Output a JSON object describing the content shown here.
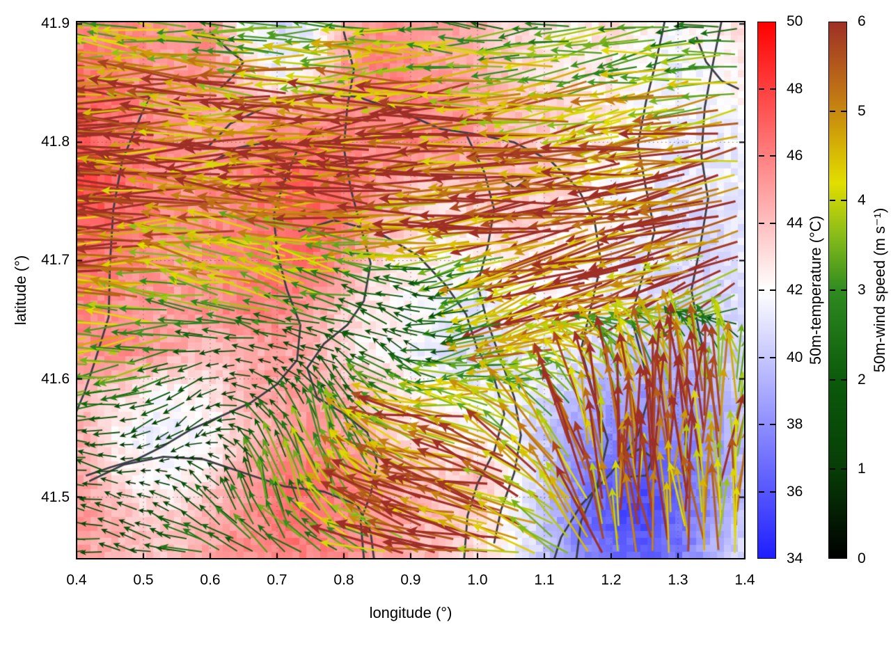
{
  "axes": {
    "xlabel": "longitude (°)",
    "ylabel": "latitude (°)",
    "x_ticks": [
      0.4,
      0.5,
      0.6,
      0.7,
      0.8,
      0.9,
      1.0,
      1.1,
      1.2,
      1.3,
      1.4
    ],
    "y_ticks": [
      41.5,
      41.6,
      41.7,
      41.8,
      41.9
    ],
    "x_range": [
      0.4,
      1.4
    ],
    "y_range": [
      41.448,
      41.902
    ],
    "grid": "dotted"
  },
  "colorbars": [
    {
      "label": "50m-temperature (°C)",
      "range": [
        34,
        50
      ],
      "ticks": [
        34,
        36,
        38,
        40,
        42,
        44,
        46,
        48,
        50
      ],
      "stops": [
        [
          34,
          "#1e1eff"
        ],
        [
          42,
          "#ffffff"
        ],
        [
          50,
          "#ff0000"
        ]
      ]
    },
    {
      "label": "50m-wind speed (m s⁻¹)",
      "range": [
        0,
        6
      ],
      "ticks": [
        0,
        1,
        2,
        3,
        4,
        5,
        6
      ],
      "stops": [
        [
          0,
          "#000000"
        ],
        [
          1,
          "#073d07"
        ],
        [
          2,
          "#0b5a0b"
        ],
        [
          3,
          "#2f8b20"
        ],
        [
          3.6,
          "#86bb1a"
        ],
        [
          4.2,
          "#e2de00"
        ],
        [
          4.7,
          "#d2a806"
        ],
        [
          5.2,
          "#c07415"
        ],
        [
          6,
          "#9e2f26"
        ]
      ]
    }
  ],
  "chart_data": {
    "type": "heatmap",
    "overlays": [
      "quiver",
      "contour"
    ],
    "title": "",
    "xlabel": "longitude (°)",
    "ylabel": "latitude (°)",
    "x_range": [
      0.4,
      1.4
    ],
    "y_range": [
      41.448,
      41.902
    ],
    "temperature_field": {
      "units": "°C",
      "cols": 21,
      "rows": 14,
      "values": [
        [
          45.5,
          46,
          45.5,
          45,
          45.5,
          42,
          40.5,
          41.5,
          44.5,
          45.5,
          45.5,
          45,
          44.5,
          43.5,
          43,
          42.5,
          43,
          42.5,
          42,
          42.5,
          43
        ],
        [
          46.5,
          46,
          45.5,
          45,
          45.5,
          43.5,
          41,
          42,
          45,
          46,
          45.5,
          45,
          44.5,
          43.5,
          43,
          42.5,
          42.5,
          42,
          41.5,
          42,
          42.5
        ],
        [
          47,
          46.5,
          45.5,
          45,
          45,
          44.5,
          44.5,
          45,
          45.5,
          46,
          46,
          45.5,
          45,
          44,
          43.5,
          43,
          42.5,
          42,
          41.5,
          41.5,
          42
        ],
        [
          47.5,
          46.5,
          46,
          45.5,
          45,
          45.5,
          46.5,
          46.5,
          46,
          45.5,
          46,
          45.5,
          45,
          44.5,
          43.5,
          43,
          42.5,
          42,
          41.5,
          41,
          41.5
        ],
        [
          48,
          47,
          46,
          45.5,
          45.5,
          46,
          47,
          47,
          46.5,
          45,
          44,
          43.5,
          44,
          44,
          43.5,
          43,
          42,
          41.5,
          41,
          41,
          41.5
        ],
        [
          47,
          46.5,
          46,
          45.5,
          45.5,
          46,
          46.5,
          47,
          46.5,
          44.5,
          43,
          42.5,
          43,
          43.5,
          43,
          42.5,
          42,
          41.5,
          41,
          40.5,
          41
        ],
        [
          46.5,
          46,
          45.5,
          45,
          45.5,
          46,
          46.5,
          46.5,
          45,
          43,
          42.5,
          42,
          42,
          42.5,
          42.5,
          42,
          41.5,
          41,
          41,
          40.5,
          41
        ],
        [
          46,
          45.5,
          45,
          45,
          45.5,
          46,
          46,
          45,
          43.5,
          42.5,
          42,
          41.5,
          41,
          41.5,
          42,
          42,
          41.5,
          41,
          40.5,
          40.5,
          41
        ],
        [
          45.5,
          46,
          45.5,
          44.5,
          44,
          44.5,
          45,
          44.5,
          43,
          42.5,
          42,
          41,
          40.5,
          41,
          41.5,
          41,
          40.5,
          40,
          39.5,
          40,
          40.5
        ],
        [
          44,
          43.5,
          42.5,
          42,
          43,
          44.5,
          45,
          45,
          44.5,
          43.5,
          42.5,
          42,
          41.5,
          41.5,
          41,
          40,
          39,
          38.5,
          38.5,
          39,
          40
        ],
        [
          44.5,
          42.5,
          41.5,
          41.5,
          42,
          44,
          45,
          45.5,
          45,
          44,
          43,
          42.5,
          42,
          41.5,
          40,
          38.5,
          38,
          37.5,
          38,
          38.5,
          39.5
        ],
        [
          45,
          43,
          42,
          42,
          43,
          45,
          46,
          46.5,
          46,
          45,
          44,
          43.5,
          44,
          42.5,
          40.5,
          38,
          36.5,
          36,
          36.5,
          38,
          39.5
        ],
        [
          45.5,
          44.5,
          43.5,
          43.5,
          44.5,
          45.5,
          46.5,
          46.5,
          46,
          45.5,
          44.5,
          44,
          43.5,
          42,
          40,
          37.5,
          36,
          35.5,
          36.5,
          38,
          40
        ],
        [
          45,
          44.5,
          44,
          44,
          45,
          45.5,
          46,
          46,
          45.5,
          45,
          44.5,
          44,
          43,
          42,
          40,
          38,
          37,
          36.5,
          37,
          39,
          40.5
        ]
      ]
    },
    "wind_field": {
      "units": "m s⁻¹",
      "cols": 11,
      "rows": 9,
      "u": [
        [
          -3.5,
          -3.2,
          -3.0,
          -2.8,
          -3.2,
          -3.0,
          -2.6,
          -2.8,
          -3.0,
          -2.6,
          -2.4
        ],
        [
          -5.5,
          -5.2,
          -5.0,
          -4.8,
          -5.0,
          -5.2,
          -4.6,
          -4.2,
          -4.4,
          -4.0,
          -3.8
        ],
        [
          -6.0,
          -5.8,
          -5.6,
          -5.8,
          -5.6,
          -5.8,
          -5.6,
          -5.4,
          -5.6,
          -5.4,
          -5.2
        ],
        [
          -5.6,
          -5.4,
          -5.0,
          -4.2,
          -4.6,
          -5.0,
          -5.4,
          -5.6,
          -5.4,
          -5.6,
          -5.4
        ],
        [
          -4.6,
          -4.2,
          -3.6,
          -4.0,
          -3.0,
          -1.4,
          -2.2,
          -4.8,
          -5.2,
          -4.6,
          -4.0
        ],
        [
          -4.0,
          -3.4,
          -1.2,
          -0.8,
          -1.6,
          -1.2,
          -2.6,
          -4.6,
          -3.0,
          -1.0,
          -0.6
        ],
        [
          -2.2,
          -1.0,
          -0.8,
          -1.6,
          -0.6,
          -4.2,
          -5.2,
          -2.6,
          -0.6,
          -0.2,
          0.4
        ],
        [
          -1.6,
          -0.8,
          -1.0,
          -0.6,
          -1.2,
          -4.6,
          -5.4,
          -4.0,
          -0.6,
          0.0,
          0.4
        ],
        [
          -2.0,
          -1.6,
          -2.4,
          -2.0,
          -3.0,
          -5.0,
          -5.6,
          -4.6,
          -1.0,
          -0.4,
          0.0
        ]
      ],
      "v": [
        [
          0.3,
          0.5,
          0.2,
          0.4,
          -0.2,
          0.0,
          0.3,
          -0.3,
          -0.5,
          -0.3,
          0.2
        ],
        [
          0.2,
          0.0,
          0.3,
          0.1,
          -0.2,
          -0.4,
          -0.3,
          -0.5,
          -0.8,
          -0.6,
          -0.4
        ],
        [
          0.0,
          0.2,
          0.0,
          -0.2,
          0.0,
          -0.3,
          -0.5,
          -0.4,
          -0.6,
          -0.8,
          -1.0
        ],
        [
          0.2,
          0.0,
          0.4,
          0.6,
          0.2,
          -0.2,
          -0.5,
          -0.8,
          -1.0,
          -1.2,
          -1.4
        ],
        [
          0.0,
          0.3,
          0.8,
          1.0,
          0.8,
          0.4,
          -0.8,
          -1.5,
          -1.8,
          -2.0,
          -2.2
        ],
        [
          -0.3,
          -0.5,
          -0.3,
          0.3,
          0.6,
          1.0,
          -0.8,
          -1.5,
          2.0,
          3.8,
          3.2
        ],
        [
          0.4,
          -0.5,
          -0.8,
          1.4,
          2.6,
          1.8,
          0.8,
          3.4,
          5.4,
          5.6,
          4.0
        ],
        [
          0.4,
          0.2,
          1.0,
          3.0,
          3.4,
          2.0,
          1.2,
          2.6,
          5.6,
          5.4,
          4.4
        ],
        [
          0.0,
          0.4,
          0.6,
          1.8,
          1.2,
          1.5,
          1.0,
          1.6,
          5.0,
          5.2,
          4.2
        ]
      ]
    },
    "contours": {
      "color": "#3a3f45",
      "lines": [
        [
          [
            0.115,
            0.125
          ],
          [
            0.098,
            0.17
          ],
          [
            0.068,
            0.26
          ],
          [
            0.055,
            0.35
          ],
          [
            0.05,
            0.45
          ],
          [
            0.048,
            0.55
          ],
          [
            0.028,
            0.63
          ],
          [
            0.012,
            0.69
          ],
          [
            0.0,
            0.725
          ]
        ],
        [
          [
            0.195,
            0.235
          ],
          [
            0.23,
            0.19
          ],
          [
            0.29,
            0.155
          ],
          [
            0.35,
            0.134
          ],
          [
            0.42,
            0.14
          ],
          [
            0.48,
            0.165
          ],
          [
            0.545,
            0.2
          ],
          [
            0.6,
            0.21
          ],
          [
            0.655,
            0.225
          ],
          [
            0.71,
            0.26
          ],
          [
            0.75,
            0.31
          ],
          [
            0.775,
            0.37
          ],
          [
            0.785,
            0.45
          ],
          [
            0.77,
            0.53
          ],
          [
            0.755,
            0.61
          ],
          [
            0.775,
            0.7
          ],
          [
            0.795,
            0.78
          ],
          [
            0.78,
            0.86
          ],
          [
            0.755,
            0.93
          ],
          [
            0.748,
            1.0
          ]
        ],
        [
          [
            0.205,
            0.26
          ],
          [
            0.24,
            0.235
          ],
          [
            0.285,
            0.225
          ],
          [
            0.33,
            0.24
          ],
          [
            0.31,
            0.3
          ],
          [
            0.295,
            0.36
          ],
          [
            0.3,
            0.43
          ],
          [
            0.315,
            0.5
          ],
          [
            0.335,
            0.565
          ],
          [
            0.33,
            0.63
          ],
          [
            0.3,
            0.675
          ],
          [
            0.26,
            0.71
          ],
          [
            0.215,
            0.735
          ],
          [
            0.17,
            0.76
          ],
          [
            0.13,
            0.79
          ],
          [
            0.09,
            0.815
          ],
          [
            0.05,
            0.83
          ],
          [
            0.015,
            0.845
          ]
        ],
        [
          [
            0.4,
            0.02
          ],
          [
            0.415,
            0.09
          ],
          [
            0.405,
            0.16
          ],
          [
            0.4,
            0.235
          ],
          [
            0.41,
            0.31
          ],
          [
            0.425,
            0.38
          ],
          [
            0.44,
            0.45
          ],
          [
            0.43,
            0.52
          ],
          [
            0.405,
            0.565
          ],
          [
            0.37,
            0.6
          ],
          [
            0.345,
            0.645
          ],
          [
            0.36,
            0.7
          ],
          [
            0.4,
            0.73
          ],
          [
            0.435,
            0.765
          ],
          [
            0.45,
            0.82
          ],
          [
            0.44,
            0.88
          ],
          [
            0.425,
            0.93
          ],
          [
            0.43,
            1.0
          ]
        ],
        [
          [
            0.02,
            0.855
          ],
          [
            0.07,
            0.825
          ],
          [
            0.13,
            0.81
          ],
          [
            0.19,
            0.815
          ],
          [
            0.25,
            0.84
          ],
          [
            0.31,
            0.865
          ],
          [
            0.37,
            0.875
          ],
          [
            0.42,
            0.9
          ],
          [
            0.44,
            0.95
          ],
          [
            0.445,
            1.0
          ]
        ],
        [
          [
            0.333,
            0.39
          ],
          [
            0.385,
            0.37
          ],
          [
            0.448,
            0.39
          ],
          [
            0.51,
            0.435
          ],
          [
            0.552,
            0.49
          ],
          [
            0.583,
            0.545
          ],
          [
            0.6,
            0.61
          ],
          [
            0.625,
            0.665
          ],
          [
            0.64,
            0.73
          ],
          [
            0.625,
            0.8
          ],
          [
            0.6,
            0.86
          ],
          [
            0.585,
            0.92
          ],
          [
            0.58,
            1.0
          ]
        ],
        [
          [
            0.585,
            0.215
          ],
          [
            0.61,
            0.28
          ],
          [
            0.625,
            0.35
          ],
          [
            0.615,
            0.42
          ],
          [
            0.6,
            0.49
          ],
          [
            0.615,
            0.56
          ],
          [
            0.635,
            0.63
          ],
          [
            0.655,
            0.7
          ],
          [
            0.665,
            0.77
          ],
          [
            0.655,
            0.84
          ],
          [
            0.635,
            0.91
          ],
          [
            0.625,
            0.97
          ]
        ],
        [
          [
            0.88,
            0.0
          ],
          [
            0.868,
            0.07
          ],
          [
            0.852,
            0.15
          ],
          [
            0.84,
            0.23
          ],
          [
            0.852,
            0.31
          ],
          [
            0.865,
            0.39
          ],
          [
            0.848,
            0.47
          ],
          [
            0.83,
            0.55
          ],
          [
            0.845,
            0.62
          ],
          [
            0.858,
            0.69
          ],
          [
            0.84,
            0.77
          ],
          [
            0.8,
            0.84
          ],
          [
            0.755,
            0.9
          ],
          [
            0.725,
            0.96
          ],
          [
            0.715,
            1.0
          ]
        ],
        [
          [
            0.965,
            0.0
          ],
          [
            0.952,
            0.08
          ],
          [
            0.94,
            0.16
          ],
          [
            0.935,
            0.25
          ],
          [
            0.945,
            0.33
          ],
          [
            0.933,
            0.42
          ],
          [
            0.92,
            0.5
          ],
          [
            0.932,
            0.58
          ],
          [
            0.945,
            0.65
          ]
        ],
        [
          [
            0.928,
            0.03
          ],
          [
            0.942,
            0.075
          ],
          [
            0.965,
            0.11
          ],
          [
            0.99,
            0.125
          ]
        ],
        [
          [
            0.818,
            0.815
          ],
          [
            0.843,
            0.795
          ],
          [
            0.862,
            0.812
          ],
          [
            0.852,
            0.845
          ],
          [
            0.82,
            0.848
          ],
          [
            0.818,
            0.815
          ]
        ],
        [
          [
            0.637,
            0.295
          ],
          [
            0.657,
            0.285
          ],
          [
            0.672,
            0.296
          ],
          [
            0.656,
            0.31
          ],
          [
            0.637,
            0.295
          ]
        ],
        [
          [
            0.2,
            0.02
          ],
          [
            0.225,
            0.05
          ],
          [
            0.25,
            0.075
          ],
          [
            0.235,
            0.1
          ],
          [
            0.215,
            0.125
          ]
        ]
      ]
    }
  }
}
